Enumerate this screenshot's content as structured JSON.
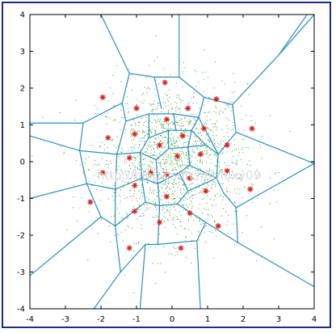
{
  "watermark": "http://blog.csdn.net/luxy09",
  "colors": {
    "frame": "#1e2a8a",
    "edges": "#2a8fbf",
    "sample_points": "#2e9a2e",
    "centroids": "#d42020",
    "axis": "#000000"
  },
  "chart_data": {
    "type": "scatter",
    "title": "",
    "xlabel": "",
    "ylabel": "",
    "xlim": [
      -4,
      4
    ],
    "ylim": [
      -4,
      4
    ],
    "xticks": [
      "-4",
      "-3",
      "-2",
      "-1",
      "0",
      "1",
      "2",
      "3",
      "4"
    ],
    "yticks": [
      "4",
      "3",
      "2",
      "1",
      "0",
      "-1",
      "-2",
      "-3",
      "-4"
    ],
    "grid": false,
    "series": [
      {
        "marker": "star",
        "color": "#d42020",
        "points": [
          [
            -0.2,
            2.15
          ],
          [
            -1.95,
            1.75
          ],
          [
            -1.0,
            1.45
          ],
          [
            0.45,
            1.45
          ],
          [
            1.25,
            1.7
          ],
          [
            -0.15,
            1.15
          ],
          [
            -1.8,
            0.65
          ],
          [
            -1.05,
            0.75
          ],
          [
            0.3,
            0.7
          ],
          [
            0.9,
            0.9
          ],
          [
            2.25,
            0.9
          ],
          [
            -0.35,
            0.45
          ],
          [
            1.55,
            0.45
          ],
          [
            0.15,
            0.15
          ],
          [
            -1.2,
            0.1
          ],
          [
            0.8,
            0.2
          ],
          [
            -1.95,
            -0.3
          ],
          [
            -0.6,
            -0.3
          ],
          [
            -0.15,
            -0.35
          ],
          [
            0.5,
            -0.45
          ],
          [
            1.55,
            -0.25
          ],
          [
            -1.05,
            -0.65
          ],
          [
            0.95,
            -0.8
          ],
          [
            2.2,
            -0.75
          ],
          [
            -0.15,
            -0.95
          ],
          [
            -2.3,
            -1.1
          ],
          [
            -1.05,
            -1.35
          ],
          [
            0.5,
            -1.4
          ],
          [
            -0.35,
            -1.65
          ],
          [
            1.3,
            -1.75
          ],
          [
            -1.2,
            -2.35
          ],
          [
            0.25,
            -2.35
          ]
        ]
      }
    ],
    "voronoi_edges": [
      [
        [
          -2.0,
          4.0
        ],
        [
          -1.2,
          2.4
        ]
      ],
      [
        [
          -1.2,
          2.4
        ],
        [
          -1.4,
          1.6
        ]
      ],
      [
        [
          -1.2,
          2.4
        ],
        [
          -0.5,
          2.3
        ]
      ],
      [
        [
          -0.5,
          2.3
        ],
        [
          -0.3,
          1.45
        ]
      ],
      [
        [
          -0.5,
          2.3
        ],
        [
          0.2,
          2.3
        ]
      ],
      [
        [
          0.2,
          4.0
        ],
        [
          0.2,
          2.3
        ]
      ],
      [
        [
          0.2,
          2.3
        ],
        [
          0.9,
          1.75
        ]
      ],
      [
        [
          0.9,
          1.75
        ],
        [
          1.7,
          1.55
        ]
      ],
      [
        [
          1.7,
          1.55
        ],
        [
          3.0,
          2.9
        ]
      ],
      [
        [
          3.0,
          2.9
        ],
        [
          4.0,
          4.0
        ]
      ],
      [
        [
          3.0,
          2.9
        ],
        [
          3.8,
          4.0
        ]
      ],
      [
        [
          1.7,
          1.55
        ],
        [
          1.8,
          0.8
        ]
      ],
      [
        [
          0.9,
          1.75
        ],
        [
          0.75,
          1.2
        ]
      ],
      [
        [
          -1.4,
          1.6
        ],
        [
          -2.5,
          1.05
        ]
      ],
      [
        [
          -2.5,
          1.05
        ],
        [
          -4.0,
          1.05
        ]
      ],
      [
        [
          -1.4,
          1.6
        ],
        [
          -1.3,
          1.1
        ]
      ],
      [
        [
          -2.5,
          1.05
        ],
        [
          -2.6,
          0.3
        ]
      ],
      [
        [
          -2.6,
          0.3
        ],
        [
          -4.0,
          0.7
        ]
      ],
      [
        [
          -2.6,
          0.3
        ],
        [
          -1.55,
          0.2
        ]
      ],
      [
        [
          -2.6,
          0.3
        ],
        [
          -2.4,
          -0.6
        ]
      ],
      [
        [
          -2.4,
          -0.6
        ],
        [
          -4.0,
          -1.0
        ]
      ],
      [
        [
          -2.4,
          -0.6
        ],
        [
          -1.6,
          -0.75
        ]
      ],
      [
        [
          -2.4,
          -0.6
        ],
        [
          -2.0,
          -1.5
        ]
      ],
      [
        [
          -2.0,
          -1.5
        ],
        [
          -4.0,
          -3.1
        ]
      ],
      [
        [
          -2.0,
          -1.5
        ],
        [
          -1.6,
          -1.75
        ]
      ],
      [
        [
          -1.6,
          -1.75
        ],
        [
          -1.45,
          -3.0
        ]
      ],
      [
        [
          -1.45,
          -3.0
        ],
        [
          -2.2,
          -4.0
        ]
      ],
      [
        [
          -1.45,
          -3.0
        ],
        [
          -0.75,
          -2.25
        ]
      ],
      [
        [
          -0.75,
          -2.25
        ],
        [
          -0.9,
          -4.0
        ]
      ],
      [
        [
          -0.75,
          -2.25
        ],
        [
          -0.4,
          -2.25
        ]
      ],
      [
        [
          -0.4,
          -2.25
        ],
        [
          0.7,
          -2.15
        ]
      ],
      [
        [
          0.7,
          -2.15
        ],
        [
          0.8,
          -4.0
        ]
      ],
      [
        [
          0.7,
          -2.15
        ],
        [
          0.95,
          -1.65
        ]
      ],
      [
        [
          0.95,
          -1.65
        ],
        [
          1.85,
          -2.2
        ]
      ],
      [
        [
          1.85,
          -2.2
        ],
        [
          4.0,
          -3.4
        ]
      ],
      [
        [
          1.85,
          -2.2
        ],
        [
          1.8,
          -1.25
        ]
      ],
      [
        [
          1.8,
          -1.25
        ],
        [
          4.0,
          -0.05
        ]
      ],
      [
        [
          1.8,
          -1.25
        ],
        [
          1.45,
          -0.85
        ]
      ],
      [
        [
          1.8,
          0.8
        ],
        [
          4.0,
          -0.05
        ]
      ],
      [
        [
          1.8,
          0.8
        ],
        [
          1.3,
          0.2
        ]
      ],
      [
        [
          1.3,
          0.2
        ],
        [
          1.25,
          -0.45
        ]
      ],
      [
        [
          1.25,
          -0.45
        ],
        [
          1.45,
          -0.85
        ]
      ],
      [
        [
          -1.3,
          1.1
        ],
        [
          -1.55,
          0.2
        ]
      ],
      [
        [
          -1.55,
          0.2
        ],
        [
          -1.6,
          -0.75
        ]
      ],
      [
        [
          -1.6,
          -0.75
        ],
        [
          -1.6,
          -1.75
        ]
      ],
      [
        [
          -1.3,
          1.1
        ],
        [
          -0.65,
          1.3
        ]
      ],
      [
        [
          -0.65,
          1.3
        ],
        [
          0.05,
          1.3
        ]
      ],
      [
        [
          0.05,
          1.3
        ],
        [
          0.75,
          1.2
        ]
      ],
      [
        [
          0.75,
          1.2
        ],
        [
          1.3,
          0.2
        ]
      ],
      [
        [
          -0.65,
          1.3
        ],
        [
          -0.65,
          0.65
        ]
      ],
      [
        [
          0.05,
          1.3
        ],
        [
          0.1,
          0.85
        ]
      ],
      [
        [
          0.75,
          1.2
        ],
        [
          0.55,
          0.85
        ]
      ],
      [
        [
          -0.65,
          0.65
        ],
        [
          -0.1,
          0.85
        ]
      ],
      [
        [
          -0.1,
          0.85
        ],
        [
          0.55,
          0.85
        ]
      ],
      [
        [
          0.55,
          0.85
        ],
        [
          0.95,
          0.45
        ]
      ],
      [
        [
          0.95,
          0.45
        ],
        [
          1.3,
          0.2
        ]
      ],
      [
        [
          -0.65,
          0.65
        ],
        [
          -0.9,
          0.25
        ]
      ],
      [
        [
          -0.9,
          0.25
        ],
        [
          -1.55,
          0.2
        ]
      ],
      [
        [
          -0.9,
          0.25
        ],
        [
          -0.85,
          -0.45
        ]
      ],
      [
        [
          -0.85,
          -0.45
        ],
        [
          -1.6,
          -0.75
        ]
      ],
      [
        [
          -0.85,
          -0.45
        ],
        [
          -0.75,
          -1.1
        ]
      ],
      [
        [
          -0.75,
          -1.1
        ],
        [
          -1.6,
          -1.75
        ]
      ],
      [
        [
          -0.75,
          -1.1
        ],
        [
          -0.35,
          -1.2
        ]
      ],
      [
        [
          -0.35,
          -1.2
        ],
        [
          0.15,
          -1.15
        ]
      ],
      [
        [
          0.15,
          -1.15
        ],
        [
          0.95,
          -1.65
        ]
      ],
      [
        [
          0.15,
          -1.15
        ],
        [
          0.45,
          -0.8
        ]
      ],
      [
        [
          0.45,
          -0.8
        ],
        [
          1.25,
          -0.45
        ]
      ],
      [
        [
          -0.35,
          -1.2
        ],
        [
          -0.4,
          -2.25
        ]
      ],
      [
        [
          -0.9,
          0.25
        ],
        [
          -0.45,
          0.05
        ]
      ],
      [
        [
          -0.45,
          0.05
        ],
        [
          -0.1,
          0.35
        ]
      ],
      [
        [
          -0.1,
          0.35
        ],
        [
          -0.1,
          0.85
        ]
      ],
      [
        [
          -0.1,
          0.35
        ],
        [
          0.45,
          0.4
        ]
      ],
      [
        [
          0.45,
          0.4
        ],
        [
          0.55,
          0.85
        ]
      ],
      [
        [
          0.45,
          0.4
        ],
        [
          0.95,
          0.45
        ]
      ],
      [
        [
          0.45,
          0.4
        ],
        [
          0.5,
          -0.1
        ]
      ],
      [
        [
          0.5,
          -0.1
        ],
        [
          1.25,
          -0.45
        ]
      ],
      [
        [
          0.5,
          -0.1
        ],
        [
          0.2,
          -0.3
        ]
      ],
      [
        [
          0.2,
          -0.3
        ],
        [
          0.45,
          -0.8
        ]
      ],
      [
        [
          -0.45,
          0.05
        ],
        [
          -0.4,
          -0.6
        ]
      ],
      [
        [
          -0.4,
          -0.6
        ],
        [
          -0.85,
          -0.45
        ]
      ],
      [
        [
          -0.4,
          -0.6
        ],
        [
          0.2,
          -0.3
        ]
      ],
      [
        [
          -0.4,
          -0.6
        ],
        [
          -0.35,
          -1.2
        ]
      ]
    ]
  }
}
